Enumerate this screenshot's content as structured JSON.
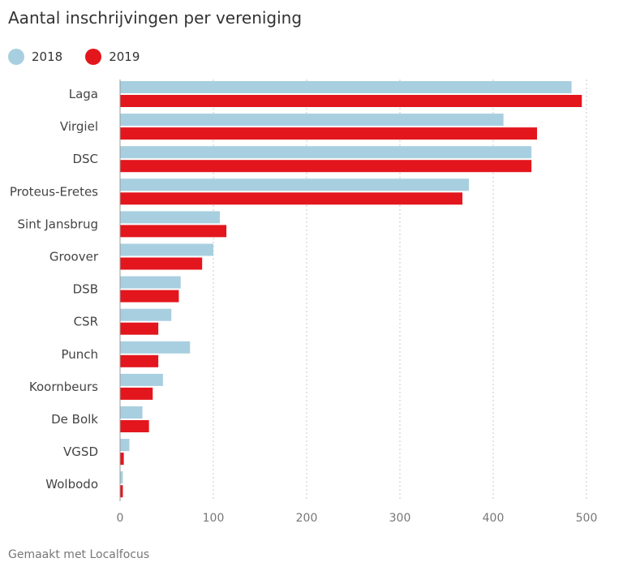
{
  "chart_data": {
    "type": "bar",
    "orientation": "horizontal",
    "title": "Aantal inschrijvingen per vereniging",
    "categories": [
      "Laga",
      "Virgiel",
      "DSC",
      "Proteus-Eretes",
      "Sint Jansbrug",
      "Groover",
      "DSB",
      "CSR",
      "Punch",
      "Koornbeurs",
      "De Bolk",
      "VGSD",
      "Wolbodo"
    ],
    "series": [
      {
        "name": "2018",
        "color": "#a8cfe0",
        "values": [
          484,
          411,
          441,
          374,
          107,
          100,
          65,
          55,
          75,
          46,
          24,
          10,
          3
        ]
      },
      {
        "name": "2019",
        "color": "#e3161d",
        "values": [
          495,
          447,
          441,
          367,
          114,
          88,
          63,
          41,
          41,
          35,
          31,
          4,
          3
        ]
      }
    ],
    "xlim": [
      0,
      500
    ],
    "xticks": [
      "0",
      "100",
      "200",
      "300",
      "400",
      "500"
    ],
    "xlabel": "",
    "ylabel": "",
    "grid": true,
    "legend": "top-left"
  },
  "footer": "Gemaakt met Localfocus"
}
